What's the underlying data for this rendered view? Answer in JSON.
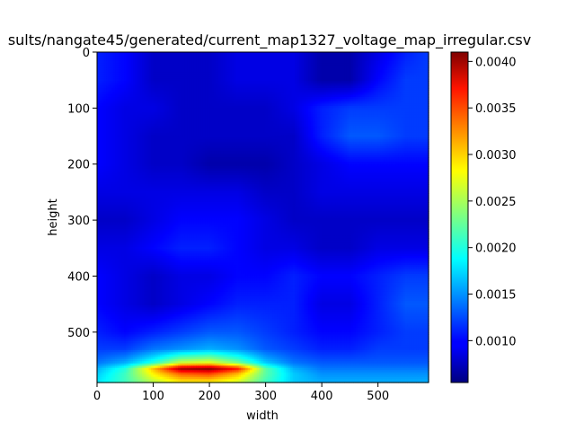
{
  "chart_data": {
    "type": "heatmap",
    "title": "sults/nangate45/generated/current_map1327_voltage_map_irregular.csv",
    "xlabel": "width",
    "ylabel": "height",
    "xlim": [
      0,
      590
    ],
    "ylim": [
      590,
      0
    ],
    "x_ticks": [
      0,
      100,
      200,
      300,
      400,
      500
    ],
    "y_ticks": [
      0,
      100,
      200,
      300,
      400,
      500
    ],
    "colormap": "jet",
    "colorbar": {
      "min": 0.00055,
      "max": 0.0041,
      "ticks": [
        "0.0010",
        "0.0015",
        "0.0020",
        "0.0025",
        "0.0030",
        "0.0035",
        "0.0040"
      ],
      "tick_values": [
        0.001,
        0.0015,
        0.002,
        0.0025,
        0.003,
        0.0035,
        0.004
      ]
    },
    "grid": false,
    "x": [
      0,
      50,
      100,
      150,
      200,
      250,
      300,
      350,
      400,
      450,
      500,
      550,
      590
    ],
    "y": [
      0,
      50,
      100,
      150,
      200,
      250,
      300,
      350,
      400,
      450,
      500,
      530,
      555,
      565,
      575,
      590
    ],
    "values": [
      [
        0.0011,
        0.001,
        0.0008,
        0.0008,
        0.0008,
        0.0009,
        0.0009,
        0.0009,
        0.0007,
        0.0007,
        0.0009,
        0.0011,
        0.0012
      ],
      [
        0.0011,
        0.001,
        0.0008,
        0.0008,
        0.0008,
        0.0009,
        0.0009,
        0.0009,
        0.0007,
        0.0007,
        0.001,
        0.0012,
        0.0012
      ],
      [
        0.001,
        0.0009,
        0.0009,
        0.0008,
        0.0008,
        0.0008,
        0.0008,
        0.0009,
        0.0011,
        0.0012,
        0.0012,
        0.0012,
        0.0012
      ],
      [
        0.001,
        0.0009,
        0.0008,
        0.0008,
        0.0008,
        0.0008,
        0.0008,
        0.0008,
        0.0011,
        0.0013,
        0.0013,
        0.0012,
        0.0012
      ],
      [
        0.001,
        0.0009,
        0.0008,
        0.0008,
        0.0007,
        0.0007,
        0.0007,
        0.0008,
        0.0009,
        0.001,
        0.001,
        0.001,
        0.001
      ],
      [
        0.0009,
        0.0009,
        0.0009,
        0.0009,
        0.0009,
        0.0009,
        0.0008,
        0.0008,
        0.0009,
        0.0009,
        0.0009,
        0.0009,
        0.0009
      ],
      [
        0.0008,
        0.0008,
        0.0009,
        0.001,
        0.001,
        0.001,
        0.0009,
        0.0008,
        0.0008,
        0.0008,
        0.0008,
        0.0008,
        0.0008
      ],
      [
        0.0009,
        0.0009,
        0.001,
        0.0011,
        0.0011,
        0.001,
        0.0009,
        0.0009,
        0.0008,
        0.0008,
        0.0009,
        0.0009,
        0.0009
      ],
      [
        0.001,
        0.0009,
        0.0008,
        0.0009,
        0.0009,
        0.001,
        0.001,
        0.0011,
        0.001,
        0.001,
        0.0011,
        0.0012,
        0.0012
      ],
      [
        0.001,
        0.0009,
        0.0008,
        0.0009,
        0.001,
        0.0011,
        0.0011,
        0.0011,
        0.0009,
        0.0009,
        0.0011,
        0.0013,
        0.0013
      ],
      [
        0.0011,
        0.001,
        0.0011,
        0.0012,
        0.0013,
        0.0013,
        0.0012,
        0.0011,
        0.001,
        0.001,
        0.0011,
        0.0012,
        0.0012
      ],
      [
        0.0012,
        0.0012,
        0.0014,
        0.0015,
        0.0016,
        0.0015,
        0.0013,
        0.0012,
        0.0011,
        0.0011,
        0.0012,
        0.0012,
        0.0012
      ],
      [
        0.0014,
        0.0016,
        0.002,
        0.0026,
        0.0027,
        0.0023,
        0.0017,
        0.0014,
        0.0013,
        0.0013,
        0.0013,
        0.0013,
        0.0013
      ],
      [
        0.0016,
        0.002,
        0.003,
        0.004,
        0.0041,
        0.0036,
        0.0022,
        0.0016,
        0.0014,
        0.0014,
        0.0014,
        0.0014,
        0.0014
      ],
      [
        0.0017,
        0.0021,
        0.0028,
        0.0033,
        0.0034,
        0.003,
        0.0022,
        0.0017,
        0.0015,
        0.0015,
        0.0015,
        0.0015,
        0.0015
      ],
      [
        0.0018,
        0.0021,
        0.0025,
        0.0028,
        0.0028,
        0.0026,
        0.0021,
        0.0017,
        0.0016,
        0.0016,
        0.0016,
        0.0016,
        0.0016
      ]
    ]
  }
}
